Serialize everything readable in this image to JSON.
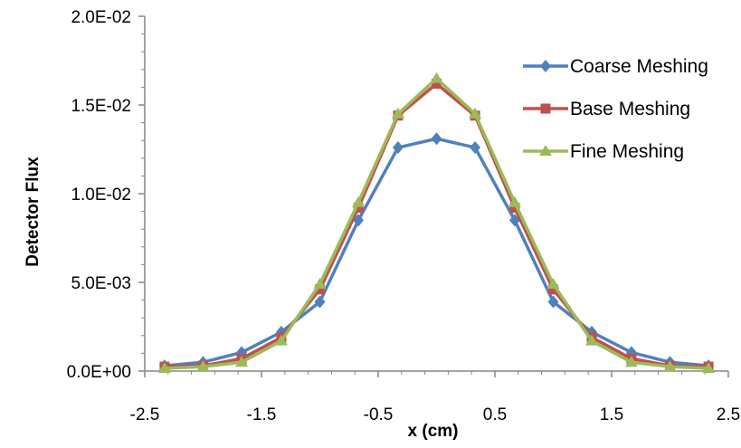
{
  "chart_data": {
    "type": "line",
    "title": "",
    "xlabel": "x (cm)",
    "ylabel": "Detector Flux",
    "xlim": [
      -2.5,
      2.5
    ],
    "ylim": [
      0,
      0.02
    ],
    "xticks": [
      "-2.5",
      "-1.5",
      "-0.5",
      "0.5",
      "1.5",
      "2.5"
    ],
    "xtick_values": [
      -2.5,
      -1.5,
      -0.5,
      0.5,
      1.5,
      2.5
    ],
    "yticks": [
      "0.0E+00",
      "5.0E-03",
      "1.0E-02",
      "1.5E-02",
      "2.0E-02"
    ],
    "ytick_values": [
      0,
      0.005,
      0.01,
      0.015,
      0.02
    ],
    "grid": false,
    "legend_position": "top-right",
    "x": [
      -2.33,
      -2.0,
      -1.67,
      -1.33,
      -1.0,
      -0.67,
      -0.33,
      0.0,
      0.33,
      0.67,
      1.0,
      1.33,
      1.67,
      2.0,
      2.33
    ],
    "series": [
      {
        "name": "Coarse Meshing",
        "color": "#4F81BD",
        "marker": "diamond",
        "values": [
          0.0003,
          0.0005,
          0.00105,
          0.0022,
          0.0039,
          0.0085,
          0.0126,
          0.0131,
          0.0126,
          0.0085,
          0.0039,
          0.0022,
          0.00105,
          0.0005,
          0.0003
        ]
      },
      {
        "name": "Base Meshing",
        "color": "#C0504D",
        "marker": "square",
        "values": [
          0.00025,
          0.0003,
          0.0007,
          0.0019,
          0.0046,
          0.0092,
          0.0144,
          0.0162,
          0.0144,
          0.0092,
          0.0046,
          0.0019,
          0.0007,
          0.0003,
          0.00025
        ]
      },
      {
        "name": "Fine Meshing",
        "color": "#9BBB59",
        "marker": "triangle",
        "values": [
          0.00015,
          0.00025,
          0.0005,
          0.0017,
          0.0049,
          0.0095,
          0.0145,
          0.0165,
          0.0145,
          0.0095,
          0.0049,
          0.0017,
          0.0005,
          0.00025,
          0.00015
        ]
      }
    ]
  }
}
